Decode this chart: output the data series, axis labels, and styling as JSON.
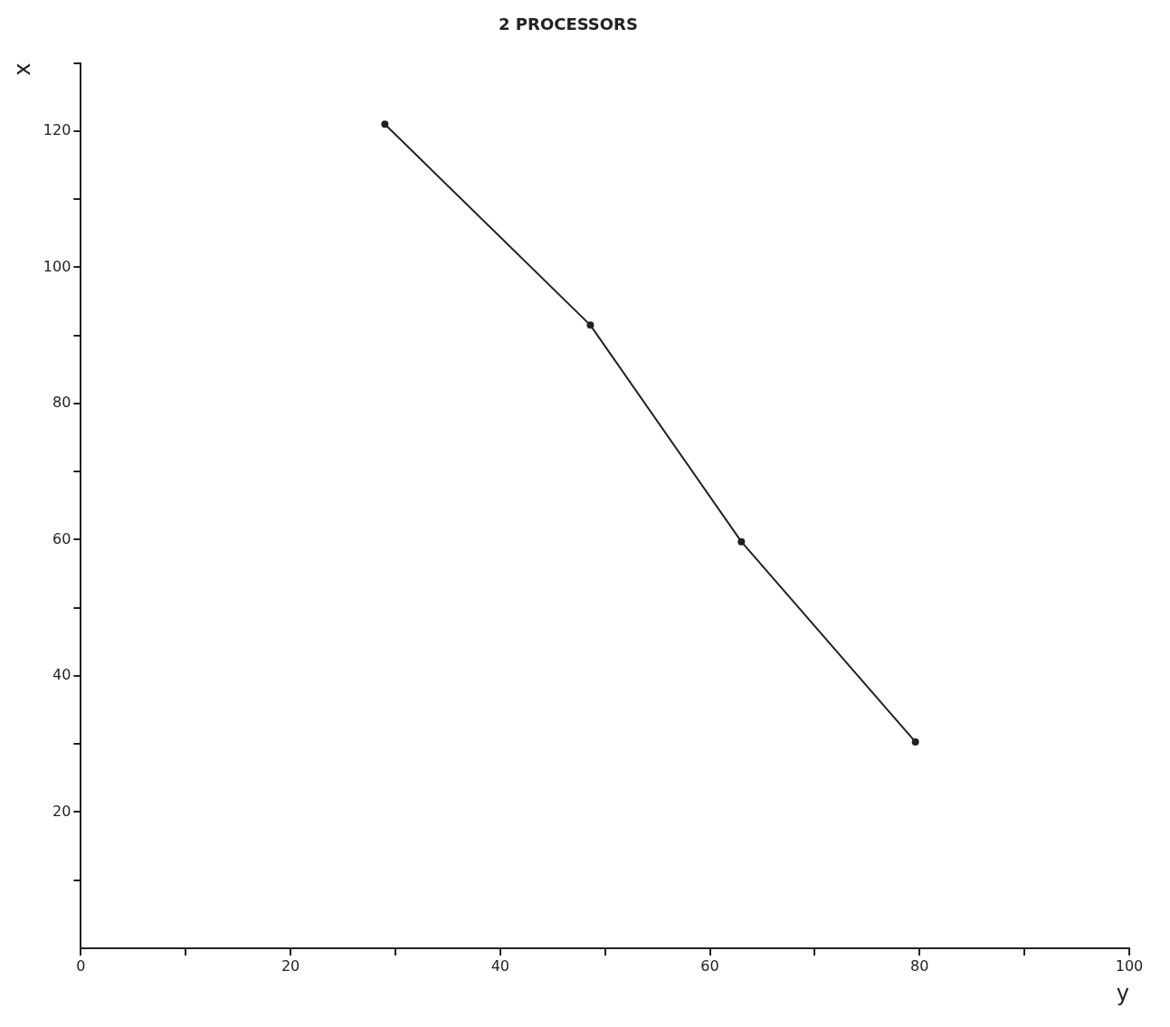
{
  "chart_data": {
    "type": "line",
    "title": "2 PROCESSORS",
    "xlabel": "y",
    "ylabel": "x",
    "x": [
      29,
      48.6,
      63,
      79.6
    ],
    "series": [
      {
        "color": "#222222",
        "values": [
          121,
          91.5,
          59.7,
          30.3
        ]
      }
    ],
    "xlim": [
      0,
      100
    ],
    "ylim": [
      0,
      130
    ],
    "xticks": [
      0,
      {
        "value": 10,
        "label": null
      },
      20,
      {
        "value": 30,
        "label": null
      },
      40,
      {
        "value": 50,
        "label": null
      },
      60,
      {
        "value": 70,
        "label": null
      },
      80,
      {
        "value": 90,
        "label": null
      },
      100
    ],
    "yticks": [
      {
        "value": 10,
        "label": null
      },
      20,
      {
        "value": 30,
        "label": null
      },
      40,
      {
        "value": 50,
        "label": null
      },
      60,
      {
        "value": 70,
        "label": null
      },
      80,
      {
        "value": 90,
        "label": null
      },
      100,
      {
        "value": 110,
        "label": null
      },
      120,
      {
        "value": 130,
        "label": null
      }
    ],
    "grid": false,
    "legend": false,
    "marker": "circle",
    "line_style": "solid"
  }
}
